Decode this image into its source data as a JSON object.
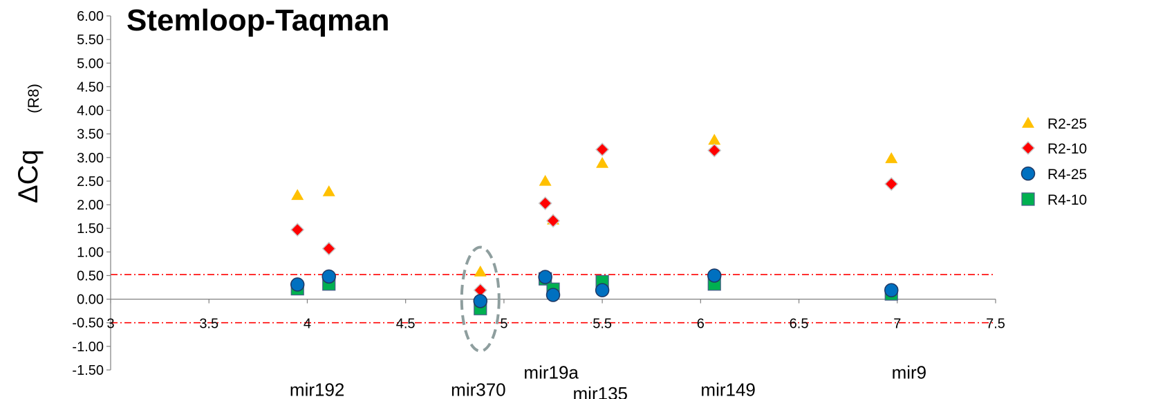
{
  "chart_data": {
    "type": "scatter",
    "title": "Stemloop-Taqman",
    "ylabel": "ΔCq",
    "ylabel_subscript": "(R8)",
    "xlim": [
      3,
      7.5
    ],
    "ylim": [
      -1.5,
      6.0
    ],
    "x_ticks": [
      "3",
      "3.5",
      "4",
      "4.5",
      "5",
      "5.5",
      "6",
      "6.5",
      "7",
      "7.5"
    ],
    "y_ticks": [
      "6.00",
      "5.50",
      "5.00",
      "4.50",
      "4.00",
      "3.50",
      "3.00",
      "2.50",
      "2.00",
      "1.50",
      "1.00",
      "0.50",
      "0.00",
      "-0.50",
      "-1.00",
      "-1.50"
    ],
    "reference_lines": [
      0.52,
      -0.5
    ],
    "reference_line_color": "#ff0000",
    "legend_position": "right",
    "category_labels": [
      {
        "text": "mir192",
        "x": 4.05,
        "y": -1.92
      },
      {
        "text": "mir370",
        "x": 4.87,
        "y": -1.92
      },
      {
        "text": "mir19a",
        "x": 5.24,
        "y": -1.55
      },
      {
        "text": "mir135",
        "x": 5.49,
        "y": -2.0
      },
      {
        "text": "mir149",
        "x": 6.14,
        "y": -1.92
      },
      {
        "text": "mir9",
        "x": 7.06,
        "y": -1.55
      }
    ],
    "highlight": {
      "x": 4.88,
      "y": 0.0,
      "rx": 0.095,
      "ry": 1.1,
      "color": "#8e9e9e"
    },
    "series": [
      {
        "name": "R2-25",
        "marker": "triangle",
        "color": "#ffc000",
        "x": [
          3.95,
          4.11,
          4.88,
          5.21,
          5.25,
          5.5,
          6.07,
          6.97
        ],
        "y": [
          2.2,
          2.28,
          0.58,
          2.5,
          1.68,
          2.88,
          3.37,
          2.98
        ]
      },
      {
        "name": "R2-10",
        "marker": "diamond",
        "color": "#ff0000",
        "x": [
          3.95,
          4.11,
          4.88,
          5.21,
          5.25,
          5.5,
          6.07,
          6.97
        ],
        "y": [
          1.47,
          1.07,
          0.19,
          2.03,
          1.66,
          3.17,
          3.15,
          2.44
        ]
      },
      {
        "name": "R4-25",
        "marker": "circle",
        "color": "#0070c0",
        "x": [
          3.95,
          4.11,
          4.88,
          5.21,
          5.25,
          5.5,
          6.07,
          6.97
        ],
        "y": [
          0.31,
          0.48,
          -0.04,
          0.47,
          0.09,
          0.19,
          0.5,
          0.19
        ]
      },
      {
        "name": "R4-10",
        "marker": "square",
        "color": "#00b050",
        "x": [
          3.95,
          4.11,
          4.88,
          5.21,
          5.25,
          5.5,
          6.07,
          6.97
        ],
        "y": [
          0.22,
          0.32,
          -0.2,
          0.43,
          0.21,
          0.37,
          0.32,
          0.11
        ]
      }
    ]
  }
}
